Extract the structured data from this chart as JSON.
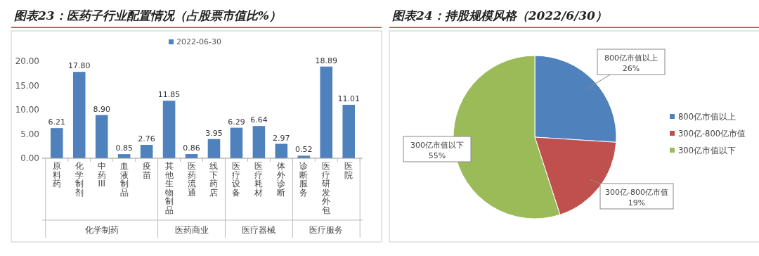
{
  "chart_data": [
    {
      "type": "bar",
      "title": "图表23：医药子行业配置情况（占股票市值比%）",
      "categories": [
        "原料药",
        "化学制剂",
        "中药III",
        "血液制品",
        "疫苗",
        "其他生物制品",
        "医药流通",
        "线下药店",
        "医疗设备",
        "医疗耗材",
        "体外诊断",
        "诊断服务",
        "医疗研发外包",
        "医院"
      ],
      "series": [
        {
          "name": "2022-06-30",
          "color": "#4f81bd",
          "values": [
            6.21,
            17.8,
            8.9,
            0.85,
            2.76,
            11.85,
            0.86,
            3.95,
            6.29,
            6.64,
            2.97,
            0.52,
            18.89,
            11.01
          ]
        }
      ],
      "value_labels": [
        "6.21",
        "17.80",
        "8.90",
        "0.85",
        "2.76",
        "11.85",
        "0.86",
        "3.95",
        "6.29",
        "6.64",
        "2.97",
        "0.52",
        "18.89",
        "11.01"
      ],
      "ylim": [
        0,
        20
      ],
      "yticks": [
        {
          "value": 0,
          "label": "0.00"
        },
        {
          "value": 5,
          "label": "5.00"
        },
        {
          "value": 10,
          "label": "10.00"
        },
        {
          "value": 15,
          "label": "15.00"
        },
        {
          "value": 20,
          "label": "20.00"
        }
      ],
      "legend": "top",
      "annotations": [
        "化学制药",
        "医药商业",
        "医疗器械",
        "医疗服务"
      ]
    },
    {
      "type": "pie",
      "title": "图表24：持股规模风格（2022/6/30）",
      "categories": [
        "800亿市值以上",
        "300亿-800亿市值",
        "300亿市值以下"
      ],
      "values": [
        26,
        19,
        55
      ],
      "colors": [
        "#4f81bd",
        "#c0504d",
        "#9bbb59"
      ],
      "legend": "right",
      "value_labels": [
        "26%",
        "19%",
        "55%"
      ]
    }
  ]
}
